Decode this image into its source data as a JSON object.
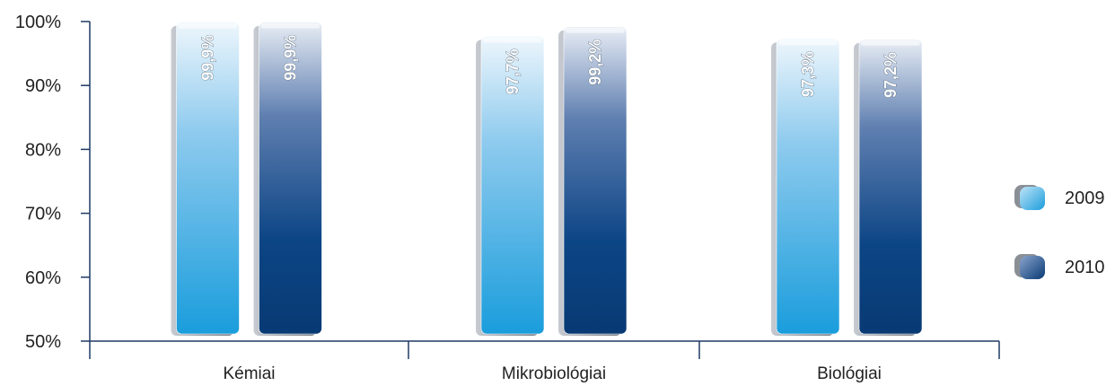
{
  "chart_data": {
    "type": "bar",
    "categories": [
      "Kémiai",
      "Mikrobiológiai",
      "Biológiai"
    ],
    "series": [
      {
        "name": "2009",
        "values": [
          99.9,
          97.7,
          97.3
        ],
        "labels": [
          "99,9%",
          "97,7%",
          "97,3%"
        ]
      },
      {
        "name": "2010",
        "values": [
          99.9,
          99.2,
          97.2
        ],
        "labels": [
          "99,9%",
          "99,2%",
          "97,2%"
        ]
      }
    ],
    "ylim": [
      50,
      100
    ],
    "yticks": [
      50,
      60,
      70,
      80,
      90,
      100
    ],
    "ytick_labels": [
      "50%",
      "60%",
      "70%",
      "80%",
      "90%",
      "100%"
    ],
    "legend_position": "right",
    "grid": false
  },
  "colors": {
    "series_2009_top": "#d9ecf8",
    "series_2009_bottom": "#1ea0dc",
    "series_2010_top": "#e2e8f2",
    "series_2010_bottom": "#0a3c78",
    "axis": "#1f3a66",
    "bar_side": "#8a8f96"
  }
}
